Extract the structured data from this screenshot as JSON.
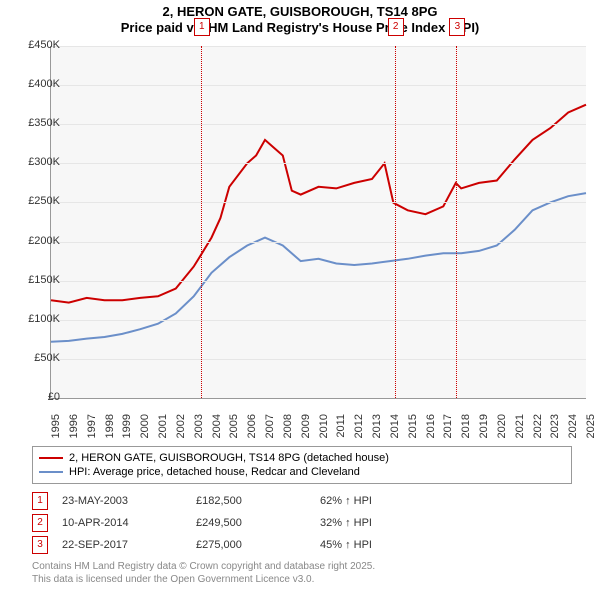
{
  "title": {
    "line1": "2, HERON GATE, GUISBOROUGH, TS14 8PG",
    "line2": "Price paid vs. HM Land Registry's House Price Index (HPI)"
  },
  "chart": {
    "type": "line",
    "background_color": "#f7f7f7",
    "grid_color": "#e6e6e6",
    "axis_color": "#999999",
    "ylim": [
      0,
      450000
    ],
    "ytick_step": 50000,
    "yticks": [
      "£0",
      "£50K",
      "£100K",
      "£150K",
      "£200K",
      "£250K",
      "£300K",
      "£350K",
      "£400K",
      "£450K"
    ],
    "xlim": [
      1995,
      2025
    ],
    "xticks": [
      1995,
      1996,
      1997,
      1998,
      1999,
      2000,
      2001,
      2002,
      2003,
      2004,
      2005,
      2006,
      2007,
      2008,
      2009,
      2010,
      2011,
      2012,
      2013,
      2014,
      2015,
      2016,
      2017,
      2018,
      2019,
      2020,
      2021,
      2022,
      2023,
      2024,
      2025
    ],
    "series": [
      {
        "name": "price_paid",
        "color": "#cc0000",
        "width": 2,
        "points": [
          [
            1995,
            125000
          ],
          [
            1996,
            122000
          ],
          [
            1997,
            128000
          ],
          [
            1998,
            125000
          ],
          [
            1999,
            125000
          ],
          [
            2000,
            128000
          ],
          [
            2001,
            130000
          ],
          [
            2002,
            140000
          ],
          [
            2003,
            168000
          ],
          [
            2003.4,
            182500
          ],
          [
            2004,
            205000
          ],
          [
            2004.5,
            230000
          ],
          [
            2005,
            270000
          ],
          [
            2006,
            300000
          ],
          [
            2006.5,
            310000
          ],
          [
            2007,
            330000
          ],
          [
            2007.5,
            320000
          ],
          [
            2008,
            310000
          ],
          [
            2008.5,
            265000
          ],
          [
            2009,
            260000
          ],
          [
            2010,
            270000
          ],
          [
            2011,
            268000
          ],
          [
            2012,
            275000
          ],
          [
            2013,
            280000
          ],
          [
            2013.7,
            300000
          ],
          [
            2014.2,
            249500
          ],
          [
            2015,
            240000
          ],
          [
            2016,
            235000
          ],
          [
            2017,
            245000
          ],
          [
            2017.7,
            275000
          ],
          [
            2018,
            268000
          ],
          [
            2019,
            275000
          ],
          [
            2020,
            278000
          ],
          [
            2021,
            305000
          ],
          [
            2022,
            330000
          ],
          [
            2023,
            345000
          ],
          [
            2024,
            365000
          ],
          [
            2025,
            375000
          ]
        ]
      },
      {
        "name": "hpi",
        "color": "#6b8fc9",
        "width": 2,
        "points": [
          [
            1995,
            72000
          ],
          [
            1996,
            73000
          ],
          [
            1997,
            76000
          ],
          [
            1998,
            78000
          ],
          [
            1999,
            82000
          ],
          [
            2000,
            88000
          ],
          [
            2001,
            95000
          ],
          [
            2002,
            108000
          ],
          [
            2003,
            130000
          ],
          [
            2004,
            160000
          ],
          [
            2005,
            180000
          ],
          [
            2006,
            195000
          ],
          [
            2007,
            205000
          ],
          [
            2008,
            195000
          ],
          [
            2009,
            175000
          ],
          [
            2010,
            178000
          ],
          [
            2011,
            172000
          ],
          [
            2012,
            170000
          ],
          [
            2013,
            172000
          ],
          [
            2014,
            175000
          ],
          [
            2015,
            178000
          ],
          [
            2016,
            182000
          ],
          [
            2017,
            185000
          ],
          [
            2018,
            185000
          ],
          [
            2019,
            188000
          ],
          [
            2020,
            195000
          ],
          [
            2021,
            215000
          ],
          [
            2022,
            240000
          ],
          [
            2023,
            250000
          ],
          [
            2024,
            258000
          ],
          [
            2025,
            262000
          ]
        ]
      }
    ],
    "markers": [
      {
        "num": "1",
        "x": 2003.4
      },
      {
        "num": "2",
        "x": 2014.27
      },
      {
        "num": "3",
        "x": 2017.73
      }
    ],
    "marker_color": "#cc0000"
  },
  "legend": {
    "items": [
      {
        "color": "#cc0000",
        "label": "2, HERON GATE, GUISBOROUGH, TS14 8PG (detached house)"
      },
      {
        "color": "#6b8fc9",
        "label": "HPI: Average price, detached house, Redcar and Cleveland"
      }
    ]
  },
  "events": [
    {
      "num": "1",
      "date": "23-MAY-2003",
      "price": "£182,500",
      "pct": "62% ↑ HPI"
    },
    {
      "num": "2",
      "date": "10-APR-2014",
      "price": "£249,500",
      "pct": "32% ↑ HPI"
    },
    {
      "num": "3",
      "date": "22-SEP-2017",
      "price": "£275,000",
      "pct": "45% ↑ HPI"
    }
  ],
  "attribution": {
    "line1": "Contains HM Land Registry data © Crown copyright and database right 2025.",
    "line2": "This data is licensed under the Open Government Licence v3.0."
  }
}
